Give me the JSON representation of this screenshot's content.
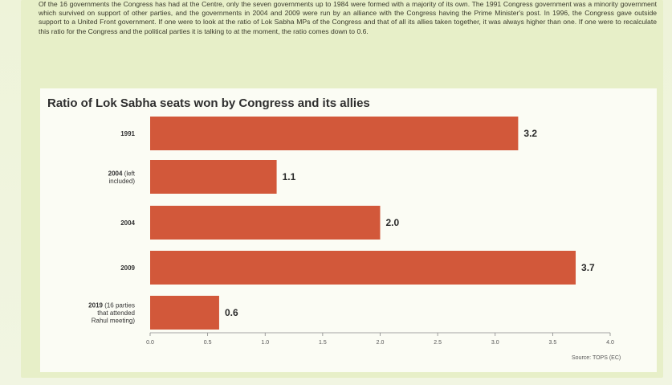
{
  "intro_text": "Of the 16 governments the Congress has had at the Centre, only the seven governments up to 1984 were formed with a majority of its own. The 1991 Congress government was a minority government which survived on support of other parties, and the governments in 2004 and 2009 were run by an alliance with the Congress having the Prime Minister's post. In 1996, the Congress gave outside support to a United Front government. If one were to look at the ratio of Lok Sabha MPs of the Congress and that of all its allies taken together, it was always higher than one. If one were to recalculate this ratio for the Congress and the political parties it is talking to at the moment, the ratio comes down to 0.6.",
  "source": "Source: TOPS (EC)",
  "colors": {
    "bar": "#d2583a",
    "background": "#e7efc8",
    "card": "#fbfcf4"
  },
  "chart_data": {
    "type": "bar",
    "orientation": "horizontal",
    "title": "Ratio of Lok Sabha seats won by Congress and its allies",
    "categories": [
      {
        "main": "1991",
        "sub": []
      },
      {
        "main": "2004",
        "sub": [
          "(left",
          "included)"
        ]
      },
      {
        "main": "2004",
        "sub": []
      },
      {
        "main": "2009",
        "sub": []
      },
      {
        "main": "2019",
        "sub": [
          "(16 parties",
          "that attended",
          "Rahul meeting)"
        ]
      }
    ],
    "values": [
      3.2,
      1.1,
      2.0,
      3.7,
      0.6
    ],
    "value_labels": [
      "3.2",
      "1.1",
      "2.0",
      "3.7",
      "0.6"
    ],
    "xlim": [
      0.0,
      4.0
    ],
    "ticks": [
      "0.0",
      "0.5",
      "1.0",
      "1.5",
      "2.0",
      "2.5",
      "3.0",
      "3.5",
      "4.0"
    ],
    "grid": false,
    "legend": "none"
  }
}
